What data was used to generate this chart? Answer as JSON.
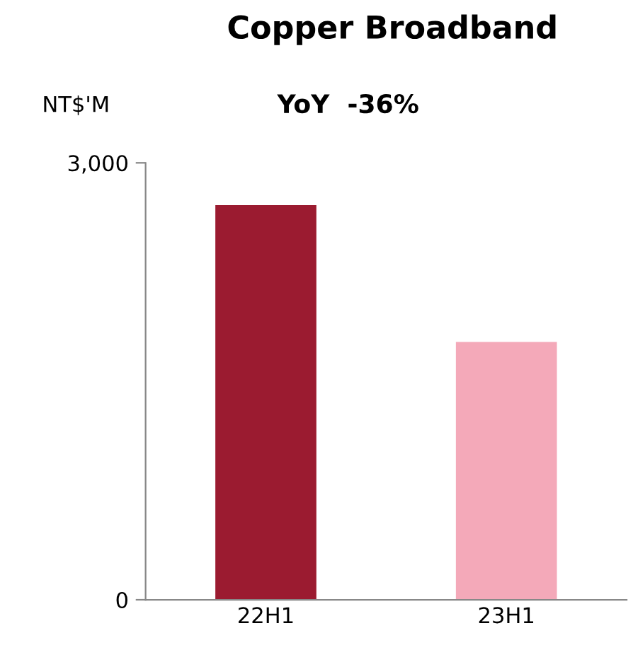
{
  "chart_data": {
    "type": "bar",
    "title": "Copper Broadband",
    "subtitle": "YoY  -36%",
    "ylabel": "NT$'M",
    "categories": [
      "22H1",
      "23H1"
    ],
    "values": [
      2710,
      1770
    ],
    "colors": [
      "#9b1b30",
      "#f4a9b9"
    ],
    "ylim": [
      0,
      3000
    ],
    "yticks": [
      {
        "value": 0,
        "label": "0"
      },
      {
        "value": 3000,
        "label": "3,000"
      }
    ],
    "grid": false
  }
}
